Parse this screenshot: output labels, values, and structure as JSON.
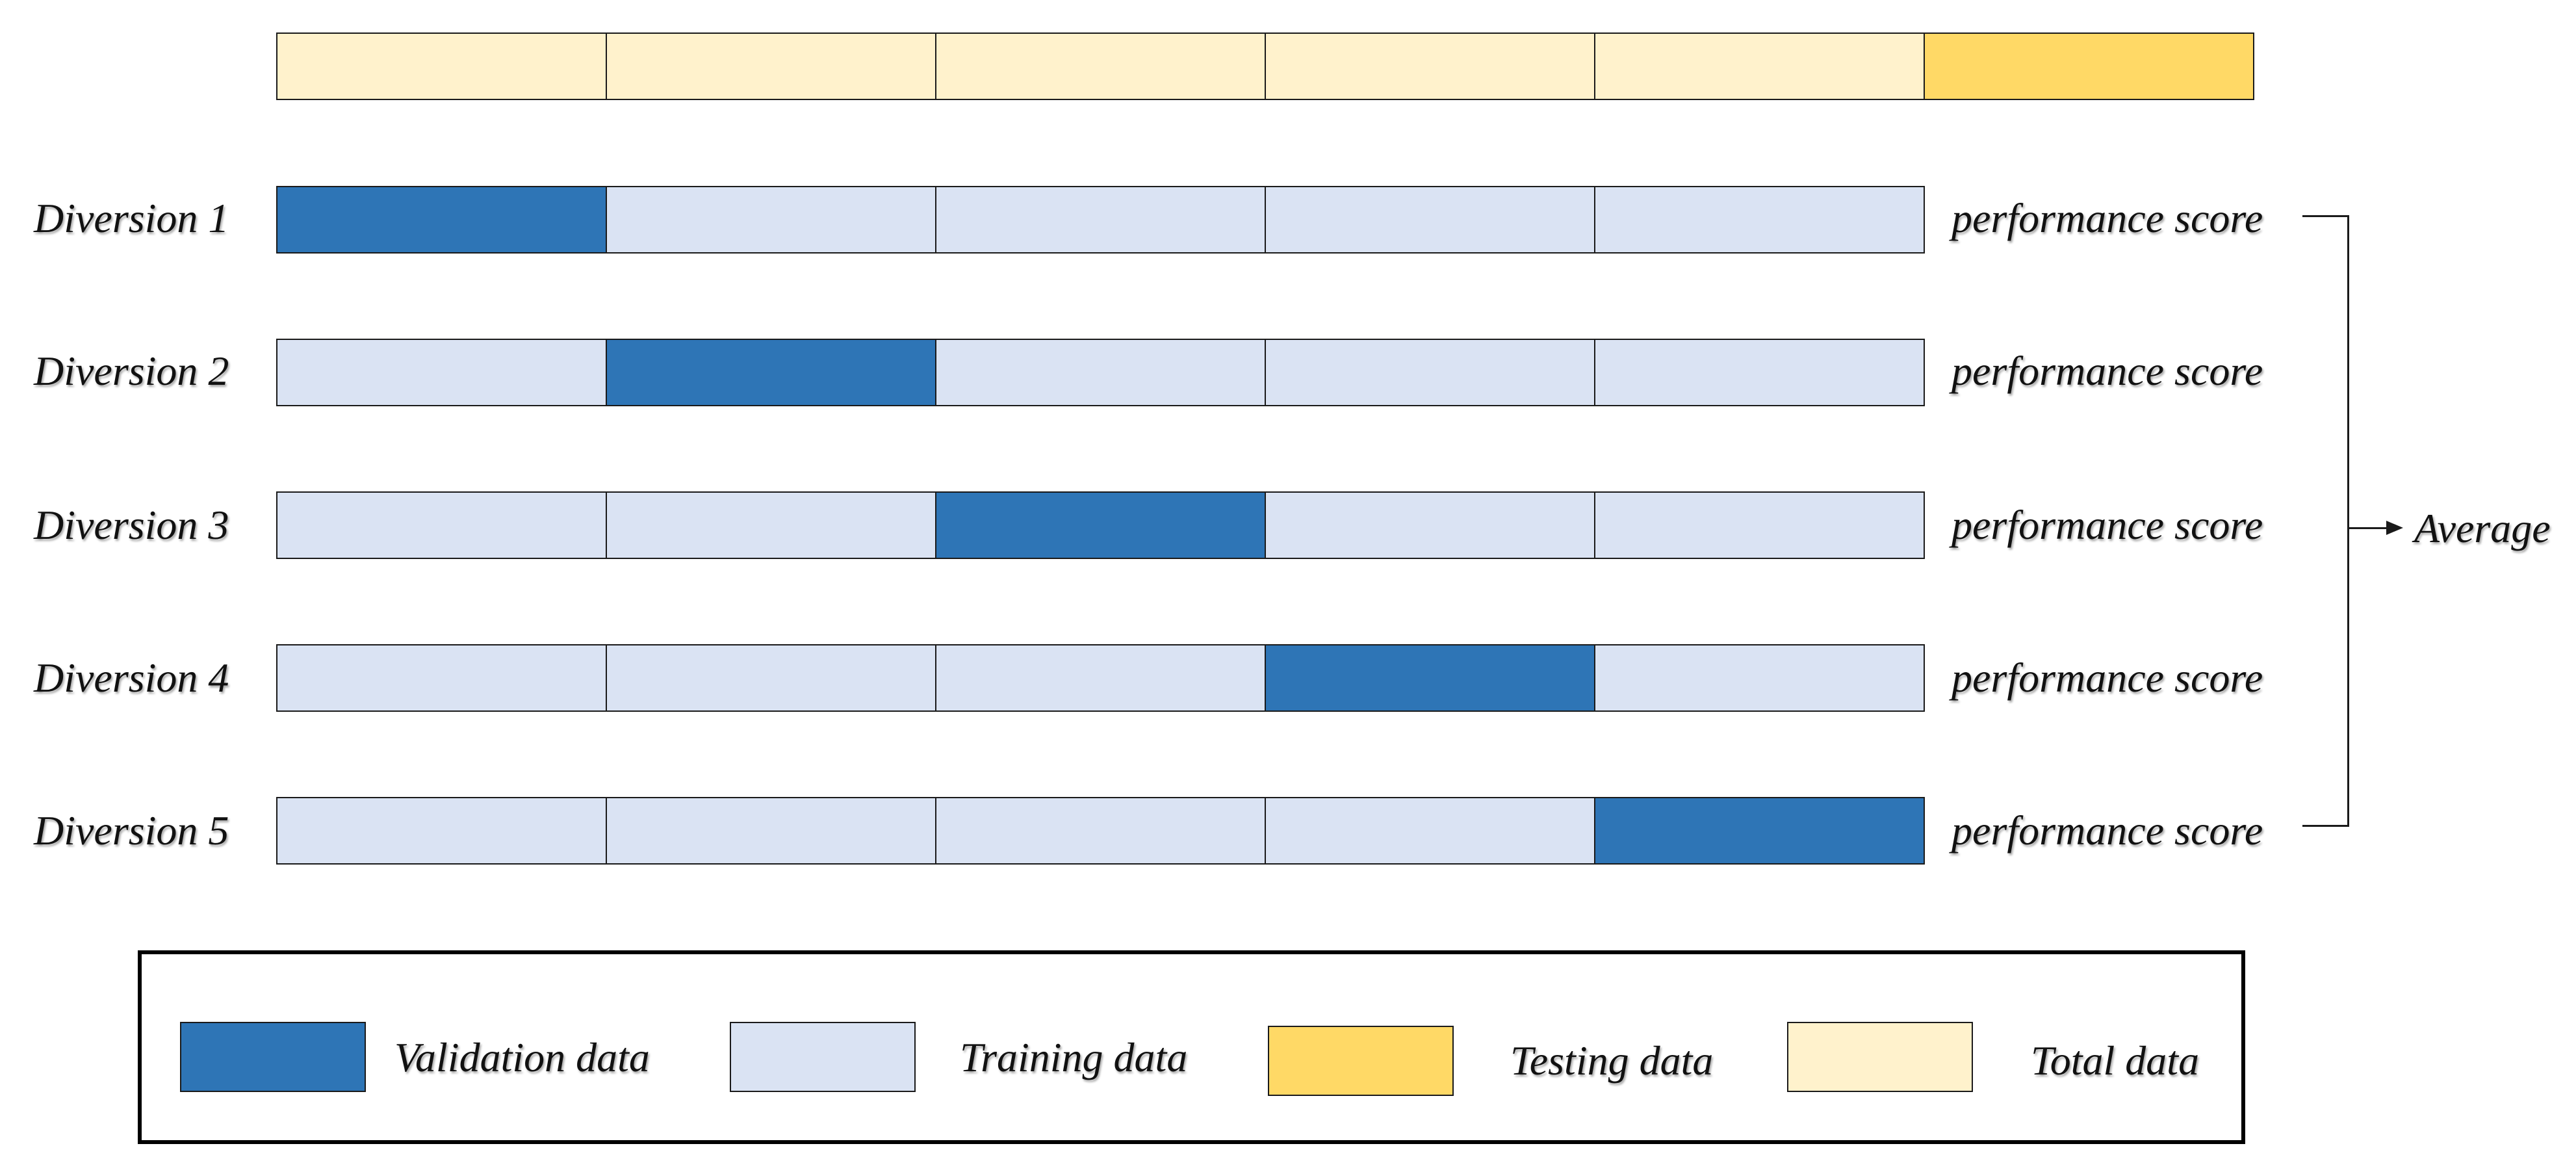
{
  "diagram": {
    "folds": 5,
    "total_row": [
      "total",
      "total",
      "total",
      "total",
      "total",
      "testing"
    ],
    "rows": [
      {
        "label": "Diversion 1",
        "validation_index": 0,
        "score_label": "performance score"
      },
      {
        "label": "Diversion 2",
        "validation_index": 1,
        "score_label": "performance score"
      },
      {
        "label": "Diversion 3",
        "validation_index": 2,
        "score_label": "performance score"
      },
      {
        "label": "Diversion 4",
        "validation_index": 3,
        "score_label": "performance score"
      },
      {
        "label": "Diversion 5",
        "validation_index": 4,
        "score_label": "performance score"
      }
    ],
    "average_label": "Average"
  },
  "legend": {
    "items": [
      {
        "key": "validation",
        "label": "Validation data"
      },
      {
        "key": "training",
        "label": "Training data"
      },
      {
        "key": "testing",
        "label": "Testing data"
      },
      {
        "key": "total",
        "label": "Total data"
      }
    ]
  },
  "colors": {
    "validation": "#2E75B6",
    "training": "#DAE3F3",
    "testing": "#FFD966",
    "total": "#FFF2CC",
    "border": "#1a1a1a"
  }
}
